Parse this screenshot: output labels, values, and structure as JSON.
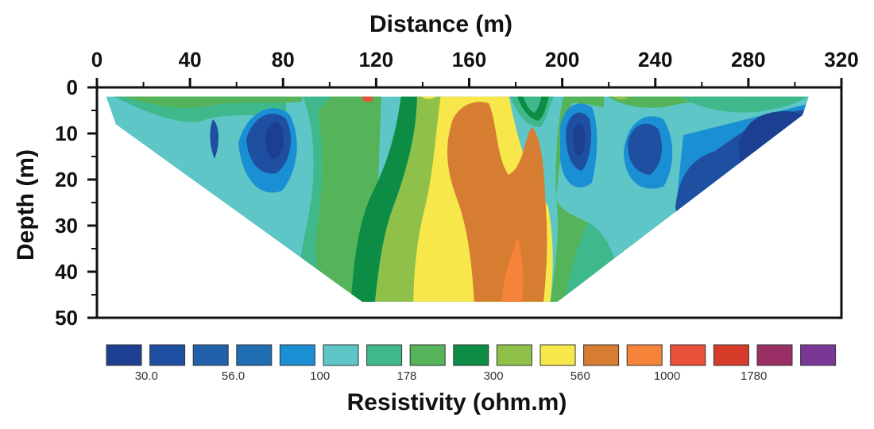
{
  "chart_data": {
    "type": "heatmap",
    "title": "",
    "xlabel": "Distance (m)",
    "ylabel": "Depth (m)",
    "x_ticks": [
      0,
      40,
      80,
      120,
      160,
      200,
      240,
      280,
      320
    ],
    "y_ticks": [
      0,
      10,
      20,
      30,
      40,
      50
    ],
    "xlim": [
      0,
      320
    ],
    "ylim": [
      0,
      50
    ],
    "x_axis_position": "top",
    "y_axis_inverted": true,
    "grid": false,
    "colorbar": {
      "title": "Resistivity (ohm.m)",
      "position": "bottom",
      "tick_labels": [
        "30.0",
        "56.0",
        "100",
        "178",
        "300",
        "560",
        "1000",
        "1780"
      ],
      "colors": [
        "#1c3f91",
        "#1f4fa1",
        "#2160aa",
        "#1f6db3",
        "#1b8fd4",
        "#5fc6c8",
        "#3fb98b",
        "#55b45a",
        "#0c8c45",
        "#8fc04a",
        "#f7e74a",
        "#d67d31",
        "#f5833a",
        "#e9513a",
        "#d73b2a",
        "#9a2f66",
        "#7a3796"
      ]
    },
    "section_outline": {
      "top_depth": 2,
      "bottom_depth": 46.5,
      "top_x": [
        4,
        306
      ],
      "bottom_x": [
        114,
        198
      ]
    }
  }
}
